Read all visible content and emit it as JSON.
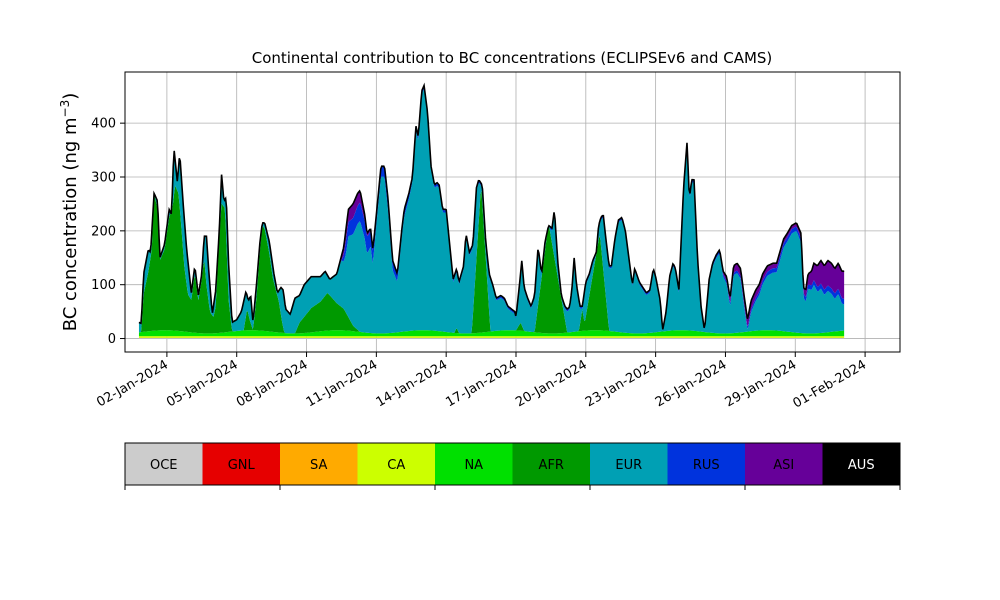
{
  "chart_data": {
    "type": "area",
    "stacked": true,
    "title": "Continental contribution to BC concentrations (ECLIPSEv6 and CAMS)",
    "ylabel": "BC concentration (ng m",
    "ylabel_sup": "−3",
    "ylabel_close": ")",
    "xlabel": "",
    "ylim": [
      -25,
      495
    ],
    "yticks": [
      0,
      100,
      200,
      300,
      400
    ],
    "x_range_days": [
      -0.8,
      32.5
    ],
    "grid": true,
    "xticks": [
      {
        "day": 1,
        "label": "02-Jan-2024"
      },
      {
        "day": 4,
        "label": "05-Jan-2024"
      },
      {
        "day": 7,
        "label": "08-Jan-2024"
      },
      {
        "day": 10,
        "label": "11-Jan-2024"
      },
      {
        "day": 13,
        "label": "14-Jan-2024"
      },
      {
        "day": 16,
        "label": "17-Jan-2024"
      },
      {
        "day": 19,
        "label": "20-Jan-2024"
      },
      {
        "day": 22,
        "label": "23-Jan-2024"
      },
      {
        "day": 25,
        "label": "26-Jan-2024"
      },
      {
        "day": 28,
        "label": "29-Jan-2024"
      },
      {
        "day": 31,
        "label": "01-Feb-2024"
      }
    ],
    "x_units": "days since 01-Jan-2024 00:00",
    "total_keypoints": [
      [
        -0.2,
        30
      ],
      [
        -0.1,
        28
      ],
      [
        0.0,
        120
      ],
      [
        0.2,
        165
      ],
      [
        0.3,
        160
      ],
      [
        0.45,
        270
      ],
      [
        0.6,
        255
      ],
      [
        0.7,
        150
      ],
      [
        0.9,
        175
      ],
      [
        1.1,
        240
      ],
      [
        1.2,
        230
      ],
      [
        1.3,
        355
      ],
      [
        1.45,
        290
      ],
      [
        1.55,
        345
      ],
      [
        1.7,
        250
      ],
      [
        1.85,
        165
      ],
      [
        2.05,
        85
      ],
      [
        2.2,
        135
      ],
      [
        2.35,
        80
      ],
      [
        2.5,
        120
      ],
      [
        2.6,
        190
      ],
      [
        2.7,
        190
      ],
      [
        2.8,
        125
      ],
      [
        2.95,
        45
      ],
      [
        3.1,
        90
      ],
      [
        3.25,
        200
      ],
      [
        3.35,
        305
      ],
      [
        3.45,
        255
      ],
      [
        3.55,
        262
      ],
      [
        3.65,
        140
      ],
      [
        3.8,
        30
      ],
      [
        4.0,
        35
      ],
      [
        4.2,
        50
      ],
      [
        4.4,
        88
      ],
      [
        4.5,
        70
      ],
      [
        4.6,
        80
      ],
      [
        4.7,
        30
      ],
      [
        4.85,
        100
      ],
      [
        5.0,
        180
      ],
      [
        5.1,
        215
      ],
      [
        5.2,
        215
      ],
      [
        5.4,
        180
      ],
      [
        5.6,
        120
      ],
      [
        5.75,
        85
      ],
      [
        5.9,
        95
      ],
      [
        6.0,
        90
      ],
      [
        6.1,
        55
      ],
      [
        6.3,
        45
      ],
      [
        6.5,
        75
      ],
      [
        6.7,
        80
      ],
      [
        6.9,
        100
      ],
      [
        7.2,
        115
      ],
      [
        7.6,
        115
      ],
      [
        7.8,
        125
      ],
      [
        8.0,
        110
      ],
      [
        8.3,
        120
      ],
      [
        8.6,
        170
      ],
      [
        8.8,
        240
      ],
      [
        9.0,
        250
      ],
      [
        9.2,
        270
      ],
      [
        9.3,
        275
      ],
      [
        9.5,
        230
      ],
      [
        9.6,
        195
      ],
      [
        9.75,
        205
      ],
      [
        9.85,
        165
      ],
      [
        10.0,
        230
      ],
      [
        10.2,
        320
      ],
      [
        10.35,
        320
      ],
      [
        10.5,
        260
      ],
      [
        10.7,
        145
      ],
      [
        10.9,
        120
      ],
      [
        11.1,
        205
      ],
      [
        11.2,
        240
      ],
      [
        11.4,
        270
      ],
      [
        11.55,
        300
      ],
      [
        11.7,
        395
      ],
      [
        11.8,
        375
      ],
      [
        11.95,
        460
      ],
      [
        12.05,
        470
      ],
      [
        12.2,
        420
      ],
      [
        12.35,
        320
      ],
      [
        12.5,
        285
      ],
      [
        12.6,
        290
      ],
      [
        12.7,
        285
      ],
      [
        12.85,
        240
      ],
      [
        13.0,
        240
      ],
      [
        13.15,
        175
      ],
      [
        13.3,
        110
      ],
      [
        13.45,
        130
      ],
      [
        13.55,
        105
      ],
      [
        13.75,
        135
      ],
      [
        13.85,
        195
      ],
      [
        14.0,
        160
      ],
      [
        14.15,
        175
      ],
      [
        14.3,
        280
      ],
      [
        14.4,
        295
      ],
      [
        14.55,
        285
      ],
      [
        14.7,
        180
      ],
      [
        14.85,
        120
      ],
      [
        15.0,
        100
      ],
      [
        15.15,
        75
      ],
      [
        15.35,
        80
      ],
      [
        15.5,
        75
      ],
      [
        15.65,
        60
      ],
      [
        15.8,
        55
      ],
      [
        15.95,
        50
      ],
      [
        16.0,
        40
      ],
      [
        16.15,
        100
      ],
      [
        16.25,
        145
      ],
      [
        16.35,
        95
      ],
      [
        16.5,
        75
      ],
      [
        16.65,
        60
      ],
      [
        16.8,
        80
      ],
      [
        16.95,
        170
      ],
      [
        17.1,
        120
      ],
      [
        17.25,
        180
      ],
      [
        17.4,
        210
      ],
      [
        17.55,
        205
      ],
      [
        17.65,
        240
      ],
      [
        17.8,
        140
      ],
      [
        17.95,
        80
      ],
      [
        18.1,
        60
      ],
      [
        18.2,
        55
      ],
      [
        18.3,
        58
      ],
      [
        18.4,
        90
      ],
      [
        18.5,
        150
      ],
      [
        18.6,
        100
      ],
      [
        18.75,
        60
      ],
      [
        18.85,
        60
      ],
      [
        19.0,
        105
      ],
      [
        19.15,
        120
      ],
      [
        19.3,
        145
      ],
      [
        19.45,
        160
      ],
      [
        19.55,
        210
      ],
      [
        19.65,
        225
      ],
      [
        19.75,
        230
      ],
      [
        19.85,
        190
      ],
      [
        20.0,
        135
      ],
      [
        20.1,
        135
      ],
      [
        20.25,
        185
      ],
      [
        20.4,
        220
      ],
      [
        20.55,
        225
      ],
      [
        20.7,
        200
      ],
      [
        20.85,
        150
      ],
      [
        21.0,
        100
      ],
      [
        21.1,
        130
      ],
      [
        21.3,
        105
      ],
      [
        21.45,
        95
      ],
      [
        21.6,
        85
      ],
      [
        21.75,
        90
      ],
      [
        21.9,
        130
      ],
      [
        22.0,
        115
      ],
      [
        22.2,
        70
      ],
      [
        22.3,
        15
      ],
      [
        22.45,
        50
      ],
      [
        22.6,
        115
      ],
      [
        22.75,
        140
      ],
      [
        22.85,
        130
      ],
      [
        23.0,
        90
      ],
      [
        23.2,
        280
      ],
      [
        23.35,
        365
      ],
      [
        23.45,
        260
      ],
      [
        23.55,
        295
      ],
      [
        23.65,
        295
      ],
      [
        23.8,
        150
      ],
      [
        23.95,
        60
      ],
      [
        24.1,
        15
      ],
      [
        24.3,
        110
      ],
      [
        24.45,
        140
      ],
      [
        24.6,
        155
      ],
      [
        24.75,
        165
      ],
      [
        24.9,
        125
      ],
      [
        25.05,
        115
      ],
      [
        25.2,
        75
      ],
      [
        25.35,
        135
      ],
      [
        25.5,
        140
      ],
      [
        25.65,
        130
      ],
      [
        25.8,
        80
      ],
      [
        25.95,
        35
      ],
      [
        26.1,
        70
      ],
      [
        26.3,
        90
      ],
      [
        26.45,
        100
      ],
      [
        26.6,
        120
      ],
      [
        26.8,
        135
      ],
      [
        27.05,
        140
      ],
      [
        27.2,
        140
      ],
      [
        27.3,
        155
      ],
      [
        27.5,
        185
      ],
      [
        27.65,
        195
      ],
      [
        27.85,
        210
      ],
      [
        28.05,
        215
      ],
      [
        28.25,
        195
      ],
      [
        28.35,
        95
      ],
      [
        28.45,
        90
      ],
      [
        28.55,
        120
      ],
      [
        28.7,
        125
      ],
      [
        28.8,
        140
      ],
      [
        28.95,
        135
      ],
      [
        29.1,
        145
      ],
      [
        29.25,
        135
      ],
      [
        29.4,
        145
      ],
      [
        29.55,
        140
      ],
      [
        29.7,
        130
      ],
      [
        29.85,
        140
      ],
      [
        30.0,
        125
      ],
      [
        30.1,
        125
      ]
    ],
    "afr_keypoints": [
      [
        -0.2,
        0
      ],
      [
        -0.1,
        0
      ],
      [
        0.0,
        70
      ],
      [
        0.2,
        110
      ],
      [
        0.35,
        150
      ],
      [
        0.45,
        255
      ],
      [
        0.6,
        225
      ],
      [
        0.7,
        130
      ],
      [
        0.9,
        150
      ],
      [
        1.1,
        210
      ],
      [
        1.25,
        230
      ],
      [
        1.35,
        270
      ],
      [
        1.5,
        255
      ],
      [
        1.6,
        205
      ],
      [
        1.75,
        120
      ],
      [
        1.9,
        70
      ],
      [
        2.05,
        60
      ],
      [
        2.2,
        110
      ],
      [
        2.35,
        60
      ],
      [
        2.5,
        100
      ],
      [
        2.6,
        140
      ],
      [
        2.7,
        90
      ],
      [
        2.85,
        40
      ],
      [
        3.0,
        30
      ],
      [
        3.1,
        50
      ],
      [
        3.25,
        180
      ],
      [
        3.35,
        240
      ],
      [
        3.5,
        230
      ],
      [
        3.65,
        60
      ],
      [
        3.8,
        0
      ],
      [
        4.0,
        0
      ],
      [
        4.3,
        0
      ],
      [
        4.45,
        40
      ],
      [
        4.55,
        20
      ],
      [
        4.7,
        0
      ],
      [
        4.85,
        60
      ],
      [
        5.0,
        150
      ],
      [
        5.1,
        195
      ],
      [
        5.2,
        190
      ],
      [
        5.4,
        145
      ],
      [
        5.55,
        100
      ],
      [
        5.7,
        75
      ],
      [
        5.8,
        60
      ],
      [
        5.95,
        20
      ],
      [
        6.05,
        0
      ],
      [
        6.3,
        0
      ],
      [
        6.5,
        0
      ],
      [
        6.7,
        20
      ],
      [
        6.9,
        30
      ],
      [
        7.2,
        45
      ],
      [
        7.6,
        55
      ],
      [
        7.9,
        70
      ],
      [
        8.1,
        60
      ],
      [
        8.3,
        50
      ],
      [
        8.6,
        40
      ],
      [
        9.0,
        10
      ],
      [
        9.3,
        0
      ],
      [
        15.35,
        0
      ],
      [
        15.9,
        0
      ],
      [
        16.0,
        0
      ],
      [
        16.2,
        15
      ],
      [
        16.35,
        0
      ],
      [
        13.35,
        0
      ],
      [
        13.45,
        10
      ],
      [
        13.55,
        0
      ],
      [
        13.85,
        0
      ],
      [
        14.0,
        0
      ],
      [
        14.3,
        0
      ],
      [
        14.45,
        0
      ]
    ],
    "afr_events": [
      {
        "start": 14.1,
        "peak": 14.5,
        "end": 14.9,
        "value": 275
      },
      {
        "start": 16.8,
        "peak": 17.4,
        "end": 18.2,
        "value": 205
      },
      {
        "start": 18.9,
        "peak": 19.6,
        "end": 20.0,
        "value": 180
      },
      {
        "start": 18.7,
        "peak": 18.85,
        "end": 19.0,
        "value": 40
      }
    ],
    "asi_keypoints": [
      [
        8.4,
        0
      ],
      [
        8.7,
        20
      ],
      [
        9.0,
        25
      ],
      [
        9.3,
        20
      ],
      [
        9.6,
        5
      ],
      [
        10.2,
        0
      ],
      [
        24.7,
        0
      ],
      [
        25.2,
        10
      ],
      [
        26.0,
        15
      ],
      [
        27.0,
        8
      ],
      [
        28.0,
        5
      ],
      [
        28.4,
        10
      ],
      [
        28.6,
        20
      ],
      [
        29.0,
        40
      ],
      [
        29.4,
        45
      ],
      [
        29.8,
        45
      ],
      [
        30.1,
        50
      ]
    ],
    "rus_keypoints": [
      [
        -0.2,
        0
      ],
      [
        8.5,
        0
      ],
      [
        8.7,
        25
      ],
      [
        9.0,
        30
      ],
      [
        9.3,
        35
      ],
      [
        9.7,
        30
      ],
      [
        10.0,
        15
      ],
      [
        10.5,
        20
      ],
      [
        10.8,
        15
      ],
      [
        11.5,
        8
      ],
      [
        12.0,
        5
      ],
      [
        15.0,
        3
      ],
      [
        22.0,
        3
      ],
      [
        26.0,
        5
      ],
      [
        27.0,
        8
      ],
      [
        28.5,
        8
      ],
      [
        29.5,
        10
      ],
      [
        30.1,
        10
      ]
    ],
    "na_level": 8,
    "ca_level": 3,
    "legend": {
      "entries": [
        {
          "key": "OCE",
          "label": "OCE",
          "color": "#cccccc"
        },
        {
          "key": "GNL",
          "label": "GNL",
          "color": "#e60000"
        },
        {
          "key": "SA",
          "label": "SA",
          "color": "#ffaa00"
        },
        {
          "key": "CA",
          "label": "CA",
          "color": "#ccff00"
        },
        {
          "key": "NA",
          "label": "NA",
          "color": "#00e000"
        },
        {
          "key": "AFR",
          "label": "AFR",
          "color": "#009900"
        },
        {
          "key": "EUR",
          "label": "EUR",
          "color": "#00a0b4"
        },
        {
          "key": "RUS",
          "label": "RUS",
          "color": "#0033dd"
        },
        {
          "key": "ASI",
          "label": "ASI",
          "color": "#660099"
        },
        {
          "key": "AUS",
          "label": "AUS",
          "color": "#000000"
        }
      ],
      "placement": "bottom"
    },
    "stack_order": [
      "OCE",
      "GNL",
      "SA",
      "CA",
      "NA",
      "AFR",
      "EUR",
      "RUS",
      "ASI",
      "AUS"
    ]
  }
}
